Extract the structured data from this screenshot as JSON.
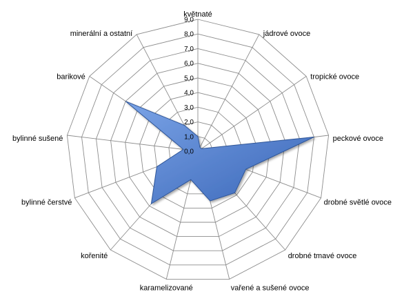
{
  "chart_data": {
    "type": "radar",
    "categories": [
      "květnaté",
      "jádrové ovoce",
      "tropické ovoce",
      "peckové ovoce",
      "drobné světlé ovoce",
      "drobné tmavé ovoce",
      "vařené a sušené ovoce",
      "karamelizované",
      "kořenité",
      "bylinné čerstvé",
      "bylinné sušené",
      "barikové",
      "minerální a ostatní"
    ],
    "values": [
      1.0,
      0.3,
      0.3,
      8.0,
      3.5,
      3.8,
      3.5,
      2.0,
      4.8,
      3.0,
      1.0,
      6.0,
      2.0
    ],
    "rlim": [
      0,
      9
    ],
    "ticks": [
      "0,0",
      "1,0",
      "2,0",
      "3,0",
      "4,0",
      "5,0",
      "6,0",
      "7,0",
      "8,0",
      "9,0"
    ],
    "colors": {
      "fill": "#4472C4",
      "fill_light": "#6C95DB",
      "stroke": "#2F5597",
      "grid": "#8c8c8c"
    }
  }
}
